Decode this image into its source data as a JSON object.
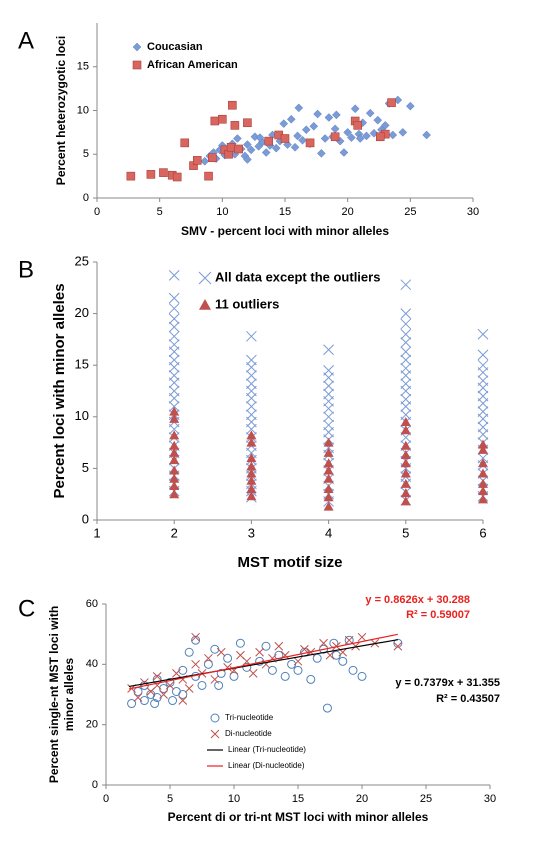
{
  "chart_data": [
    {
      "type": "scatter",
      "panel_label": "A",
      "xlabel": "SMV - percent loci with minor alleles",
      "ylabel": "Percent heterozygotic loci",
      "xlim": [
        0,
        30
      ],
      "xticks": [
        0,
        5,
        10,
        15,
        20,
        25,
        30
      ],
      "ylim": [
        0,
        20
      ],
      "yticks": [
        0,
        5,
        10,
        15
      ],
      "legend": "upper left",
      "series": [
        {
          "name": "Coucasian",
          "color": "#7b9bd6",
          "marker": "diamond",
          "x": [
            8.6,
            9,
            9.3,
            9.5,
            9.8,
            10,
            10.2,
            10.5,
            10.8,
            11,
            11.2,
            11.5,
            11.8,
            12,
            12.3,
            12.6,
            12.9,
            13.2,
            13.5,
            13.8,
            14,
            14.3,
            14.6,
            14.9,
            15.2,
            15.5,
            15.8,
            16.1,
            16.4,
            16.7,
            17,
            17.3,
            17.6,
            17.9,
            18.2,
            18.5,
            18.8,
            19.1,
            19.4,
            19.7,
            20,
            20.3,
            20.6,
            20.9,
            21.2,
            21.5,
            21.8,
            22.1,
            22.4,
            22.7,
            23,
            23.3,
            23.6,
            24,
            24.4,
            25,
            26.3,
            12,
            13,
            16,
            19,
            21
          ],
          "values": [
            4.2,
            4.8,
            5.2,
            4.5,
            5.5,
            6,
            4.9,
            5.3,
            6.2,
            5,
            6.8,
            5.6,
            4.8,
            6.1,
            5.5,
            7,
            5.9,
            6.4,
            5.2,
            6,
            7.2,
            5.7,
            6.5,
            8.5,
            6.1,
            9,
            5.8,
            10.3,
            6.6,
            7.8,
            6.2,
            8.2,
            9.6,
            5.1,
            6.8,
            9.2,
            7,
            9.5,
            6.5,
            5.2,
            7.5,
            6.9,
            10.2,
            7.3,
            8.6,
            7.1,
            9.7,
            7.4,
            8.9,
            7.8,
            8.3,
            10.8,
            7.2,
            11.2,
            7.5,
            10.5,
            7.2,
            4.4,
            6.9,
            7.1,
            7.9,
            6.8
          ]
        },
        {
          "name": "African American",
          "color": "#d9655f",
          "marker": "square",
          "x": [
            2.7,
            4.3,
            5.3,
            6,
            6.4,
            7,
            7.7,
            8,
            8.9,
            9.2,
            9.4,
            10,
            10.2,
            10.5,
            10.7,
            10.8,
            11,
            11.3,
            12,
            13.7,
            14.5,
            15,
            17,
            19,
            20.6,
            20.8,
            23,
            23.5,
            22.6
          ],
          "values": [
            2.5,
            2.7,
            2.9,
            2.6,
            2.4,
            6.3,
            3.7,
            4.3,
            2.5,
            4.6,
            8.8,
            9,
            5.5,
            5,
            5.8,
            10.6,
            8.3,
            5.6,
            8.6,
            6.5,
            7.2,
            6.8,
            6.3,
            7,
            8.8,
            8.3,
            7.3,
            10.9,
            7
          ]
        }
      ]
    },
    {
      "type": "scatter",
      "panel_label": "B",
      "xlabel": "MST motif size",
      "ylabel": "Percent loci with minor alleles",
      "xlim": [
        1,
        6
      ],
      "xticks": [
        1,
        2,
        3,
        4,
        5,
        6
      ],
      "ylim": [
        0,
        25
      ],
      "yticks": [
        0,
        5,
        10,
        15,
        20,
        25
      ],
      "legend": "upper right",
      "series": [
        {
          "name": "All data except the outliers",
          "color": "#7b9bd6",
          "marker": "x",
          "x": [
            2,
            2,
            2,
            2,
            2,
            2,
            2,
            2,
            2,
            2,
            2,
            2,
            2,
            2,
            2,
            2,
            2,
            2,
            2,
            2,
            2,
            2,
            2,
            2,
            2,
            2,
            3,
            3,
            3,
            3,
            3,
            3,
            3,
            3,
            3,
            3,
            3,
            3,
            3,
            3,
            3,
            3,
            3,
            3,
            3,
            3,
            4,
            4,
            4,
            4,
            4,
            4,
            4,
            4,
            4,
            4,
            4,
            4,
            4,
            4,
            4,
            4,
            4,
            4,
            4,
            5,
            5,
            5,
            5,
            5,
            5,
            5,
            5,
            5,
            5,
            5,
            5,
            5,
            5,
            5,
            5,
            5,
            5,
            5,
            5,
            5,
            5,
            5,
            5,
            5,
            6,
            6,
            6,
            6,
            6,
            6,
            6,
            6,
            6,
            6,
            6,
            6,
            6,
            6,
            6,
            6,
            6,
            6,
            6,
            6
          ],
          "values": [
            23.7,
            21.5,
            20.5,
            19.5,
            18.7,
            17.8,
            17,
            16.3,
            15.5,
            14.8,
            14,
            13.3,
            12.5,
            11.8,
            11,
            10.2,
            9.5,
            8.8,
            8,
            7.2,
            6.5,
            5.8,
            5,
            4.3,
            3.5,
            2.8,
            17.8,
            15.5,
            14.8,
            14,
            13.2,
            12.5,
            11.8,
            11,
            10.2,
            9.5,
            8.8,
            8,
            7.2,
            6.5,
            5.8,
            5,
            4.3,
            3.5,
            2.8,
            2.2,
            16.5,
            14.5,
            13.8,
            13,
            12.2,
            11.5,
            10.8,
            10,
            9.2,
            8.5,
            7.8,
            7,
            6.3,
            5.5,
            4.8,
            4,
            3.3,
            2.5,
            1.8,
            22.8,
            20,
            19,
            18,
            17.2,
            16.3,
            15.5,
            14.7,
            14,
            13.2,
            12.5,
            11.7,
            11,
            10.2,
            9.5,
            8.7,
            8,
            7.2,
            6.5,
            5.7,
            5,
            4.2,
            3.5,
            2.7,
            1.9,
            18,
            16,
            15,
            14.3,
            13.5,
            12.8,
            12,
            11.3,
            10.5,
            9.8,
            9,
            8.3,
            7.5,
            6.8,
            6,
            5.3,
            4.5,
            3.8,
            3,
            2.3
          ]
        },
        {
          "name": "11 outliers",
          "color": "#c0504d",
          "marker": "triangle",
          "x": [
            2,
            2,
            2,
            2,
            2,
            2,
            2,
            2,
            2,
            2,
            3,
            3,
            3,
            3,
            3,
            3,
            3,
            3,
            4,
            4,
            4,
            4,
            4,
            4,
            4,
            4,
            5,
            5,
            5,
            5,
            5,
            5,
            5,
            5,
            5,
            6,
            6,
            6,
            6,
            6,
            6,
            6
          ],
          "values": [
            10.5,
            9.8,
            8.2,
            7.2,
            6.5,
            5.8,
            4.8,
            4,
            3.3,
            2.5,
            8.2,
            7.5,
            6,
            5.2,
            4.5,
            3.8,
            3,
            2.3,
            7.5,
            6.5,
            5.5,
            4.8,
            4,
            3,
            2.2,
            1.3,
            9.5,
            8.7,
            7.2,
            6.3,
            5.5,
            4.5,
            3.5,
            2.6,
            1.8,
            7.3,
            6.8,
            5.5,
            4.5,
            3.5,
            2.8,
            2
          ]
        }
      ]
    },
    {
      "type": "scatter",
      "panel_label": "C",
      "xlabel": "Percent di or tri-nt MST loci with minor alleles",
      "ylabel": [
        "Percent single-nt MST loci with",
        "minor alleles"
      ],
      "xlim": [
        0,
        30
      ],
      "xticks": [
        0,
        5,
        10,
        15,
        20,
        25,
        30
      ],
      "ylim": [
        0,
        60
      ],
      "yticks": [
        0,
        20,
        40,
        60
      ],
      "legend": "lower center",
      "series": [
        {
          "name": "Tri-nucleotide",
          "color": "#4f81bd",
          "marker": "circle",
          "x": [
            2,
            2.5,
            3,
            3,
            3.5,
            4,
            4,
            4.5,
            5,
            5.5,
            6,
            6,
            6.5,
            7,
            7,
            7.5,
            8,
            8.5,
            9,
            9.5,
            10,
            10.5,
            11,
            12,
            12.5,
            13,
            13.5,
            14,
            14.5,
            15,
            15.5,
            16,
            16.5,
            17,
            17.3,
            17.8,
            18,
            18.5,
            19,
            19.3,
            20,
            22.8,
            3.8,
            5.2,
            8.8
          ],
          "values": [
            27,
            31,
            28,
            33,
            30,
            35,
            29,
            32,
            34,
            31,
            38,
            30,
            44,
            36,
            48,
            33,
            40,
            45,
            37,
            42,
            36,
            47,
            39,
            41,
            46,
            38,
            43,
            36,
            40,
            38,
            44,
            35,
            42,
            45,
            25.5,
            47,
            43,
            41,
            48,
            38,
            36,
            47,
            27,
            28,
            33
          ]
        },
        {
          "name": "Di-nucleotide",
          "color": "#c0504d",
          "marker": "x",
          "x": [
            2,
            2.5,
            3,
            3.5,
            4,
            4.5,
            5,
            5.5,
            6,
            6.5,
            7,
            7,
            7.5,
            8,
            8.5,
            9,
            9.5,
            10,
            10.5,
            11,
            11.5,
            12,
            12.5,
            13,
            13.5,
            14,
            15,
            15.5,
            16,
            17,
            17.5,
            18,
            18.5,
            19,
            19.5,
            20,
            21,
            22.8,
            4,
            6
          ],
          "values": [
            32,
            29,
            34,
            31,
            36,
            30,
            33,
            37,
            35,
            32,
            40,
            49,
            37,
            42,
            35,
            44,
            39,
            38,
            43,
            41,
            37,
            44,
            40,
            42,
            46,
            43,
            41,
            45,
            44,
            47,
            43,
            46,
            44,
            48,
            46,
            49,
            47,
            46,
            33,
            28
          ]
        }
      ],
      "trendlines": [
        {
          "name": "Linear (Tri-nucleotide)",
          "color": "#000000",
          "slope": 0.7379,
          "intercept": 31.355,
          "x": [
            1.8,
            22.8
          ],
          "equation": "y = 0.7379x + 31.355",
          "r2": "R² = 0.43507"
        },
        {
          "name": "Linear (Di-nucleotide)",
          "color": "#e8231f",
          "slope": 0.8626,
          "intercept": 30.288,
          "x": [
            1.8,
            22.8
          ],
          "equation": "y = 0.8626x + 30.288",
          "r2": "R² = 0.59007"
        }
      ]
    }
  ]
}
